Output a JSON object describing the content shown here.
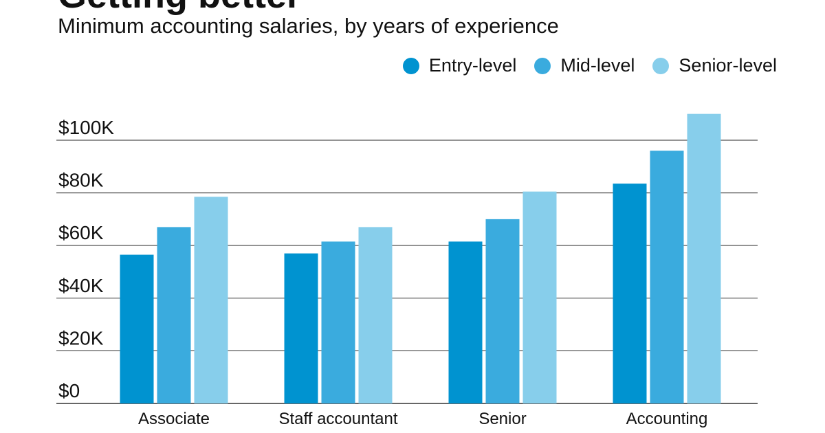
{
  "chart_data": {
    "type": "bar",
    "title": "Getting better",
    "subtitle": "Minimum accounting salaries, by years of experience",
    "categories": [
      "Associate",
      "Staff accountant",
      "Senior",
      "Accounting"
    ],
    "series": [
      {
        "name": "Entry-level",
        "color": "#0093d0",
        "values": [
          56.5,
          57,
          61.5,
          83.5
        ]
      },
      {
        "name": "Mid-level",
        "color": "#3aabde",
        "values": [
          67,
          61.5,
          70,
          96
        ]
      },
      {
        "name": "Senior-level",
        "color": "#87ceeb",
        "values": [
          78.5,
          67,
          80.5,
          110
        ]
      }
    ],
    "yticks": [
      0,
      20,
      40,
      60,
      80,
      100
    ],
    "ytick_labels": [
      "$0",
      "$20K",
      "$40K",
      "$60K",
      "$80K",
      "$100K"
    ],
    "ylim": [
      0,
      110
    ],
    "yunit": "thousands USD",
    "xlabel": "",
    "ylabel": "",
    "grid": true,
    "legend_position": "top-right"
  }
}
